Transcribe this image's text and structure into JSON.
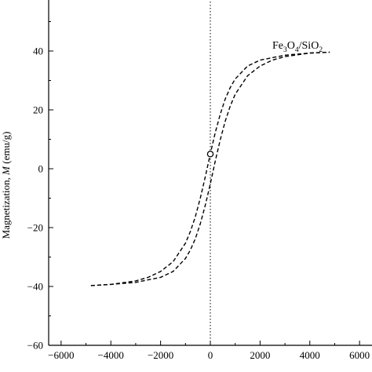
{
  "chart_data": {
    "type": "line",
    "ylabel_text": "Magnetization, ",
    "ylabel_italic": "M",
    "ylabel_unit": " (emu/g)",
    "xlim": [
      -6500,
      6500
    ],
    "ylim": [
      -60,
      60
    ],
    "x_ticks": [
      -6000,
      -4000,
      -2000,
      0,
      2000,
      4000,
      6000
    ],
    "x_tick_labels": [
      "−6000",
      "−4000",
      "−2000",
      "0",
      "2000",
      "4000",
      "6000"
    ],
    "y_ticks": [
      -60,
      -40,
      -20,
      0,
      20,
      40
    ],
    "y_tick_labels": [
      "−60",
      "−40",
      "−20",
      "0",
      "20",
      "40"
    ],
    "series_label": {
      "a": "Fe",
      "a_sub": "3",
      "b": "O",
      "b_sub": "4",
      "c": "/SiO",
      "c_sub": "2"
    },
    "reference_line_x": 0,
    "marker_point": {
      "x": 0,
      "y": 5
    },
    "series": [
      {
        "branch": "upper",
        "x": [
          -4800,
          -4000,
          -3000,
          -2500,
          -2000,
          -1500,
          -1000,
          -800,
          -600,
          -400,
          -200,
          0,
          200,
          400,
          600,
          800,
          1000,
          1500,
          2000,
          3000,
          4000,
          4800
        ],
        "y": [
          -39.7,
          -39.3,
          -38.1,
          -36.9,
          -34.9,
          -31.6,
          -25.3,
          -21.3,
          -16.2,
          -9.9,
          -2.6,
          5.1,
          12.3,
          18.6,
          23.7,
          27.6,
          30.5,
          34.9,
          36.9,
          38.6,
          39.3,
          39.6
        ]
      },
      {
        "branch": "lower",
        "x": [
          -4800,
          -4000,
          -3000,
          -2000,
          -1500,
          -1000,
          -800,
          -600,
          -400,
          -200,
          0,
          200,
          400,
          600,
          800,
          1000,
          1500,
          2000,
          2500,
          3000,
          4000,
          4800
        ],
        "y": [
          -39.7,
          -39.3,
          -38.6,
          -36.9,
          -34.9,
          -30.5,
          -27.6,
          -23.7,
          -18.6,
          -12.3,
          -5.1,
          2.6,
          9.9,
          16.2,
          21.3,
          25.3,
          31.6,
          34.9,
          36.9,
          38.1,
          39.3,
          39.6
        ]
      }
    ],
    "colors": {
      "curve": "#000000",
      "axes": "#000000"
    }
  }
}
